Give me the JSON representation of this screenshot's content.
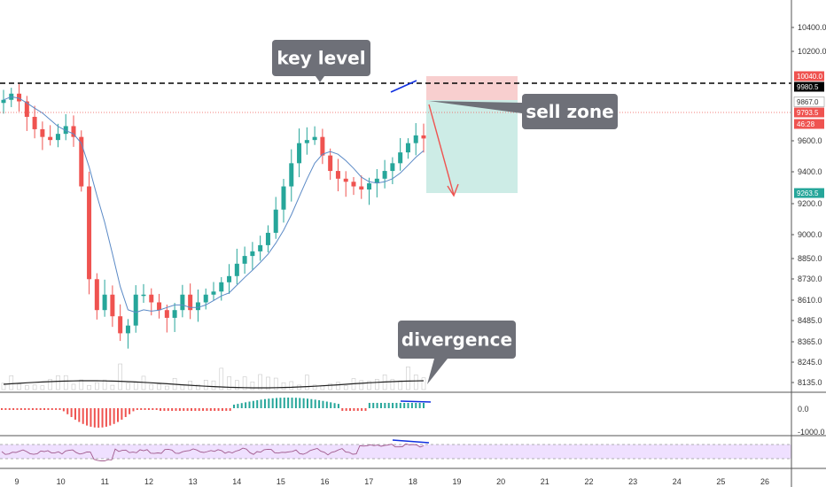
{
  "chart_data": {
    "type": "candlestick",
    "price_axis": {
      "ticks": [
        "10400.0",
        "10200.0",
        "9600.0",
        "9400.0",
        "9200.0",
        "9000.0",
        "8850.0",
        "8730.0",
        "8610.0",
        "8485.0",
        "8365.0",
        "8245.0",
        "8135.0"
      ],
      "ylim": [
        8080,
        10560
      ]
    },
    "date_axis": {
      "ticks": [
        "9",
        "10",
        "11",
        "12",
        "13",
        "14",
        "15",
        "16",
        "17",
        "18",
        "19",
        "20",
        "21",
        "22",
        "23",
        "24",
        "25",
        "26"
      ]
    },
    "price_badges": [
      {
        "label": "10040.0",
        "value": 10040,
        "color": "#ef5350"
      },
      {
        "label": "9980.5",
        "value": 9980.5,
        "color": "#000000"
      },
      {
        "label": "9867.0",
        "value": 9867,
        "color": "#ffffff"
      },
      {
        "label": "9793.5",
        "value": 9793.5,
        "color": "#ef5350"
      },
      {
        "label": "46:28",
        "value": 9718,
        "color": "#ef5350"
      },
      {
        "label": "9263.5",
        "value": 9263.5,
        "color": "#26a69a"
      }
    ],
    "key_level": 9980.5,
    "current_price": 9793.5,
    "short_position": {
      "entry": 9867,
      "stop": 10040,
      "target": 9263.5
    },
    "close_series": [
      9960,
      10000,
      9950,
      9850,
      9770,
      9720,
      9700,
      9740,
      9790,
      9720,
      9400,
      8800,
      8600,
      8700,
      8560,
      8450,
      8500,
      8700,
      8700,
      8650,
      8600,
      8550,
      8600,
      8700,
      8600,
      8650,
      8700,
      8720,
      8780,
      8820,
      8900,
      8950,
      8980,
      9020,
      9100,
      9250,
      9400,
      9550,
      9680,
      9700,
      9720,
      9600,
      9500,
      9450,
      9430,
      9400,
      9380,
      9420,
      9450,
      9500,
      9550,
      9620,
      9680,
      9730,
      9710
    ],
    "oscillators": {
      "macd_axis_ticks": [
        "0.0",
        "-1000.0"
      ]
    },
    "annotations": [
      "key level",
      "sell zone",
      "divergence"
    ],
    "colors": {
      "up": "#26a69a",
      "down": "#ef5350",
      "ma": "#5b8ac6",
      "rsi": "#a05a8c",
      "rsi_band": "#efe0ff",
      "stop_zone": "#f8cfcf",
      "target_zone": "#cdece6",
      "callout": "#6e7078",
      "divergence_line": "#1030e0"
    }
  }
}
